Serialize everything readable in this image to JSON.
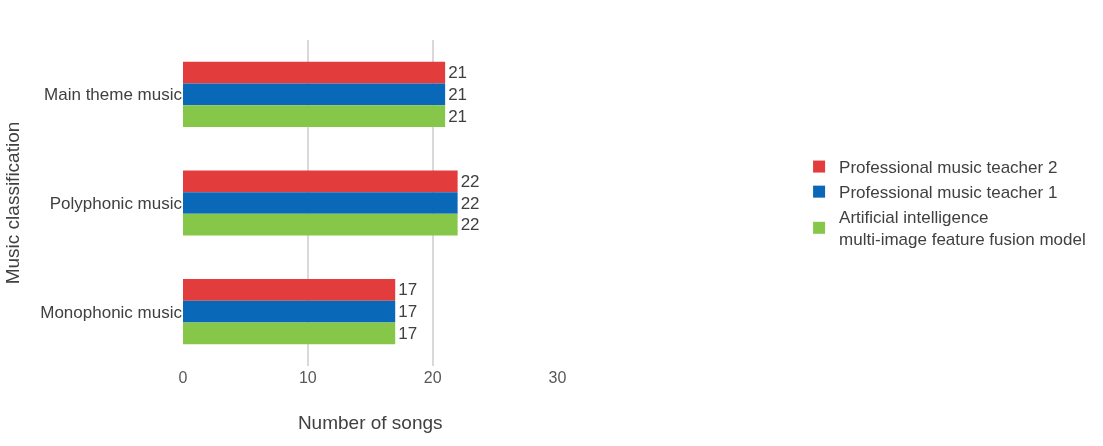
{
  "chart_data": {
    "type": "bar",
    "orientation": "horizontal",
    "xlabel": "Number of songs",
    "ylabel": "Music classification",
    "categories": [
      "Main theme music",
      "Polyphonic music",
      "Monophonic music"
    ],
    "series": [
      {
        "name": "Professional music teacher 2",
        "color": "#e23c3c",
        "values": [
          21,
          22,
          17
        ]
      },
      {
        "name": "Professional music teacher 1",
        "color": "#0a68b8",
        "values": [
          21,
          22,
          17
        ]
      },
      {
        "name": "Artificial intelligence multi-image feature fusion model",
        "color": "#86c648",
        "values": [
          21,
          22,
          17
        ]
      }
    ],
    "xlim": [
      0,
      30
    ],
    "xticks": [
      0,
      10,
      20,
      30
    ],
    "grid": "x",
    "legend": "right",
    "data_labels": true
  }
}
